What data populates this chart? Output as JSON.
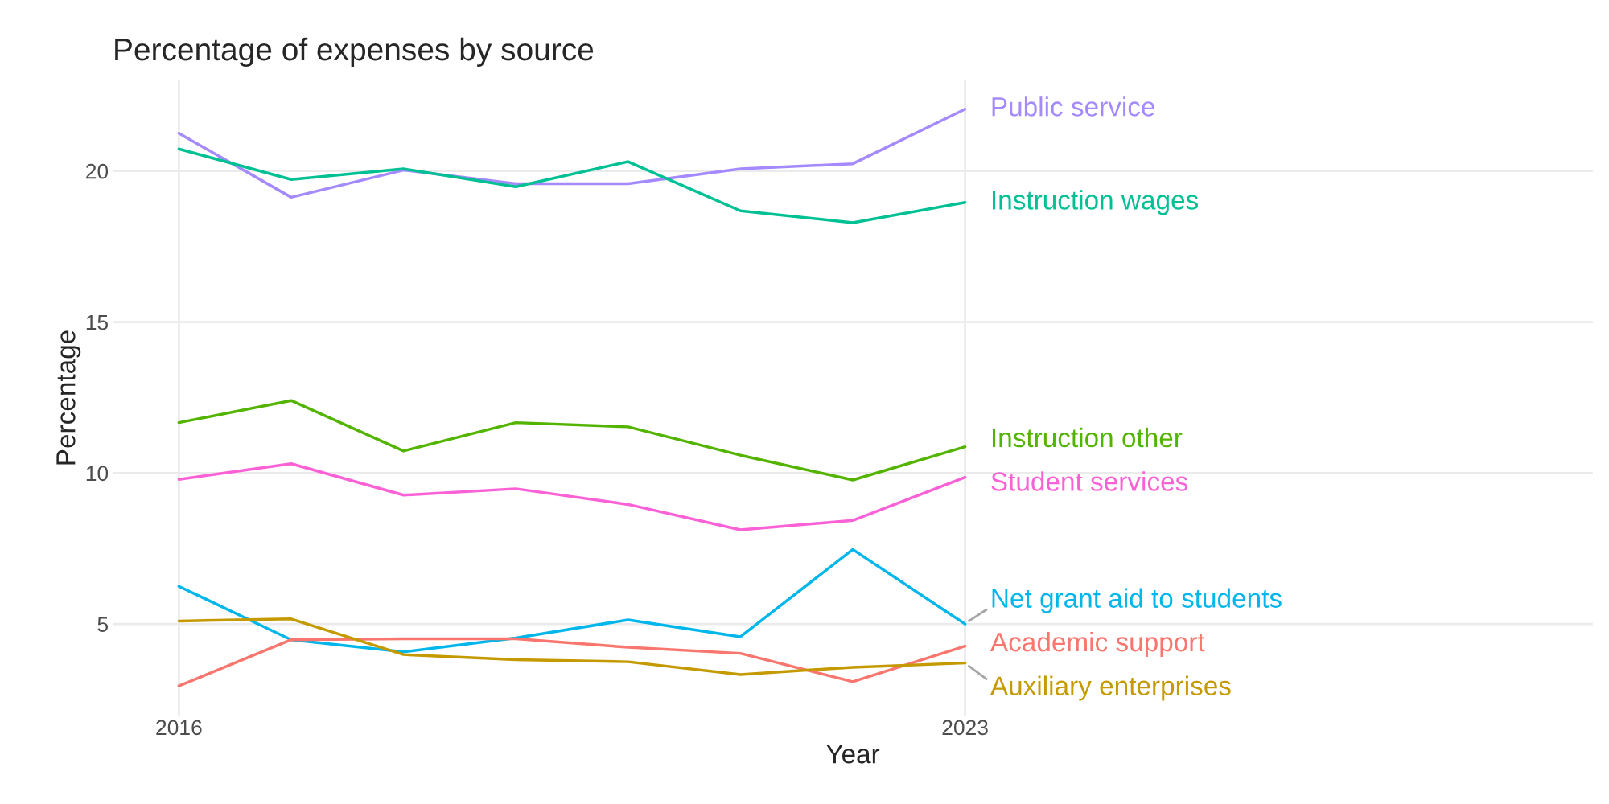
{
  "chart_data": {
    "type": "line",
    "title": "Percentage of expenses by source",
    "xlabel": "Year",
    "ylabel": "Percentage",
    "x": [
      2016,
      2017,
      2018,
      2019,
      2020,
      2021,
      2022,
      2023
    ],
    "xlim": [
      2015.41,
      2028.59
    ],
    "xticks": [
      2016,
      2023
    ],
    "ylim": [
      1.97,
      23.0
    ],
    "yticks": [
      5,
      10,
      15,
      20
    ],
    "grid": true,
    "legend": false,
    "series": [
      {
        "name": "Public service",
        "color": "#a58aff",
        "values": [
          21.25,
          19.13,
          20.03,
          19.58,
          19.58,
          20.07,
          20.24,
          22.05
        ]
      },
      {
        "name": "Instruction wages",
        "color": "#00c094",
        "values": [
          20.73,
          19.72,
          20.07,
          19.48,
          20.31,
          18.68,
          18.29,
          18.96
        ]
      },
      {
        "name": "Instruction other",
        "color": "#53b400",
        "values": [
          11.67,
          12.4,
          10.73,
          11.67,
          11.53,
          10.59,
          9.77,
          10.87
        ]
      },
      {
        "name": "Student services",
        "color": "#fb61d7",
        "values": [
          9.79,
          10.31,
          9.27,
          9.48,
          8.96,
          8.12,
          8.43,
          9.86
        ]
      },
      {
        "name": "Net grant aid to students",
        "color": "#00b6eb",
        "values": [
          6.25,
          4.48,
          4.08,
          4.54,
          5.14,
          4.58,
          7.47,
          5.0
        ]
      },
      {
        "name": "Academic support",
        "color": "#f8766d",
        "values": [
          2.95,
          4.48,
          4.51,
          4.51,
          4.23,
          4.03,
          3.09,
          4.27
        ]
      },
      {
        "name": "Auxiliary enterprises",
        "color": "#c49a00",
        "values": [
          5.1,
          5.17,
          3.99,
          3.82,
          3.75,
          3.33,
          3.57,
          3.71
        ]
      }
    ]
  }
}
